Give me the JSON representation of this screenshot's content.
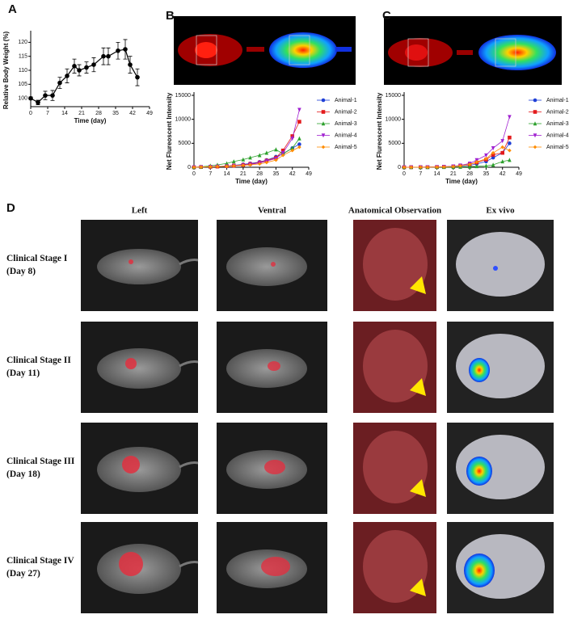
{
  "chart_data": [
    {
      "type": "line",
      "panel": "A",
      "y_label": "Relative Body Weight (%)",
      "x_label": "Time (day)",
      "xlim": [
        0,
        49
      ],
      "xticks": [
        0,
        7,
        14,
        21,
        28,
        35,
        42,
        49
      ],
      "ylim": [
        97,
        123
      ],
      "yticks": [
        100,
        105,
        110,
        115,
        120
      ],
      "series": [
        {
          "color": "#000000",
          "marker": "circle",
          "x": [
            0,
            3,
            6,
            9,
            12,
            15,
            18,
            20,
            23,
            26,
            30,
            32,
            36,
            39,
            41,
            44
          ],
          "values": [
            100,
            98.5,
            101,
            101,
            105.5,
            108,
            111.5,
            110,
            111,
            112,
            115,
            115,
            117,
            117.5,
            112,
            107.5
          ],
          "errors": [
            0.5,
            0.8,
            1.5,
            1.8,
            2,
            2.5,
            2.5,
            2,
            2,
            2.5,
            3,
            3,
            3,
            3.5,
            3,
            3
          ]
        }
      ]
    },
    {
      "type": "line",
      "panel": "B",
      "y_label": "Net Flureoscent Intensity",
      "x_label": "Time (day)",
      "xlim": [
        0,
        49
      ],
      "xticks": [
        0,
        7,
        14,
        21,
        28,
        35,
        42,
        49
      ],
      "ylim": [
        0,
        15000
      ],
      "yticks": [
        0,
        5000,
        10000,
        15000
      ],
      "series": [
        {
          "name": "Animal-1",
          "color": "#1f3fd6",
          "marker": "circle",
          "x": [
            0,
            3,
            7,
            10,
            14,
            17,
            21,
            24,
            28,
            31,
            35,
            38,
            42,
            45
          ],
          "values": [
            0,
            50,
            100,
            150,
            250,
            400,
            600,
            800,
            1100,
            1500,
            2200,
            2800,
            4000,
            4800
          ]
        },
        {
          "name": "Animal-2",
          "color": "#e31a1c",
          "marker": "square",
          "x": [
            0,
            3,
            7,
            10,
            14,
            17,
            21,
            24,
            28,
            31,
            35,
            38,
            42,
            45
          ],
          "values": [
            0,
            50,
            100,
            150,
            250,
            350,
            500,
            700,
            1000,
            1400,
            2000,
            3500,
            6500,
            9500
          ]
        },
        {
          "name": "Animal-3",
          "color": "#2ca02c",
          "marker": "triangle-up",
          "x": [
            0,
            3,
            7,
            10,
            14,
            17,
            21,
            24,
            28,
            31,
            35,
            38,
            42,
            45
          ],
          "values": [
            0,
            100,
            300,
            500,
            800,
            1200,
            1600,
            2000,
            2500,
            3000,
            3700,
            2800,
            4000,
            6000
          ]
        },
        {
          "name": "Animal-4",
          "color": "#a020d0",
          "marker": "triangle-down",
          "x": [
            0,
            3,
            7,
            10,
            14,
            17,
            21,
            24,
            28,
            31,
            35,
            38,
            42,
            45
          ],
          "values": [
            0,
            50,
            100,
            150,
            200,
            300,
            400,
            600,
            900,
            1300,
            1800,
            3000,
            6000,
            12000
          ]
        },
        {
          "name": "Animal-5",
          "color": "#ff8c00",
          "marker": "diamond",
          "x": [
            0,
            3,
            7,
            10,
            14,
            17,
            21,
            24,
            28,
            31,
            35,
            38,
            42,
            45
          ],
          "values": [
            0,
            50,
            100,
            150,
            200,
            300,
            400,
            500,
            700,
            1000,
            1500,
            2500,
            3500,
            4200
          ]
        }
      ]
    },
    {
      "type": "line",
      "panel": "C",
      "y_label": "Net Flureoscent Intensity",
      "x_label": "Time (day)",
      "xlim": [
        0,
        49
      ],
      "xticks": [
        0,
        7,
        14,
        21,
        28,
        35,
        42,
        49
      ],
      "ylim": [
        0,
        15000
      ],
      "yticks": [
        0,
        5000,
        10000,
        15000
      ],
      "series": [
        {
          "name": "Animal-1",
          "color": "#1f3fd6",
          "marker": "circle",
          "x": [
            0,
            3,
            7,
            10,
            14,
            17,
            21,
            24,
            28,
            31,
            35,
            38,
            42,
            45
          ],
          "values": [
            0,
            10,
            20,
            30,
            50,
            80,
            150,
            250,
            400,
            700,
            1200,
            2000,
            3000,
            5000
          ]
        },
        {
          "name": "Animal-2",
          "color": "#e31a1c",
          "marker": "square",
          "x": [
            0,
            3,
            7,
            10,
            14,
            17,
            21,
            24,
            28,
            31,
            35,
            38,
            42,
            45
          ],
          "values": [
            0,
            10,
            20,
            30,
            50,
            100,
            200,
            300,
            600,
            1000,
            1600,
            2600,
            3000,
            6200
          ]
        },
        {
          "name": "Animal-3",
          "color": "#2ca02c",
          "marker": "triangle-up",
          "x": [
            0,
            3,
            7,
            10,
            14,
            17,
            21,
            24,
            28,
            31,
            35,
            38,
            42,
            45
          ],
          "values": [
            0,
            5,
            10,
            15,
            20,
            30,
            50,
            80,
            120,
            200,
            300,
            500,
            1200,
            1500
          ]
        },
        {
          "name": "Animal-4",
          "color": "#a020d0",
          "marker": "triangle-down",
          "x": [
            0,
            3,
            7,
            10,
            14,
            17,
            21,
            24,
            28,
            31,
            35,
            38,
            42,
            45
          ],
          "values": [
            0,
            10,
            20,
            40,
            60,
            100,
            200,
            400,
            800,
            1500,
            2500,
            4000,
            5500,
            10500
          ]
        },
        {
          "name": "Animal-5",
          "color": "#ff8c00",
          "marker": "diamond",
          "x": [
            0,
            3,
            7,
            10,
            14,
            17,
            21,
            24,
            28,
            31,
            35,
            38,
            42,
            45
          ],
          "values": [
            0,
            10,
            20,
            30,
            50,
            80,
            150,
            300,
            600,
            1100,
            1800,
            3000,
            4200,
            3500
          ]
        }
      ]
    }
  ],
  "panel_d": {
    "panel": "D",
    "columns": [
      "Left",
      "Ventral",
      "Anatomical Observation",
      "Ex vivo"
    ],
    "rows": [
      {
        "stage": "Clinical Stage I",
        "day": "(Day 8)"
      },
      {
        "stage": "Clinical Stage II",
        "day": "(Day 11)"
      },
      {
        "stage": "Clinical Stage III",
        "day": "(Day 18)"
      },
      {
        "stage": "Clinical Stage IV",
        "day": "(Day 27)"
      }
    ]
  }
}
